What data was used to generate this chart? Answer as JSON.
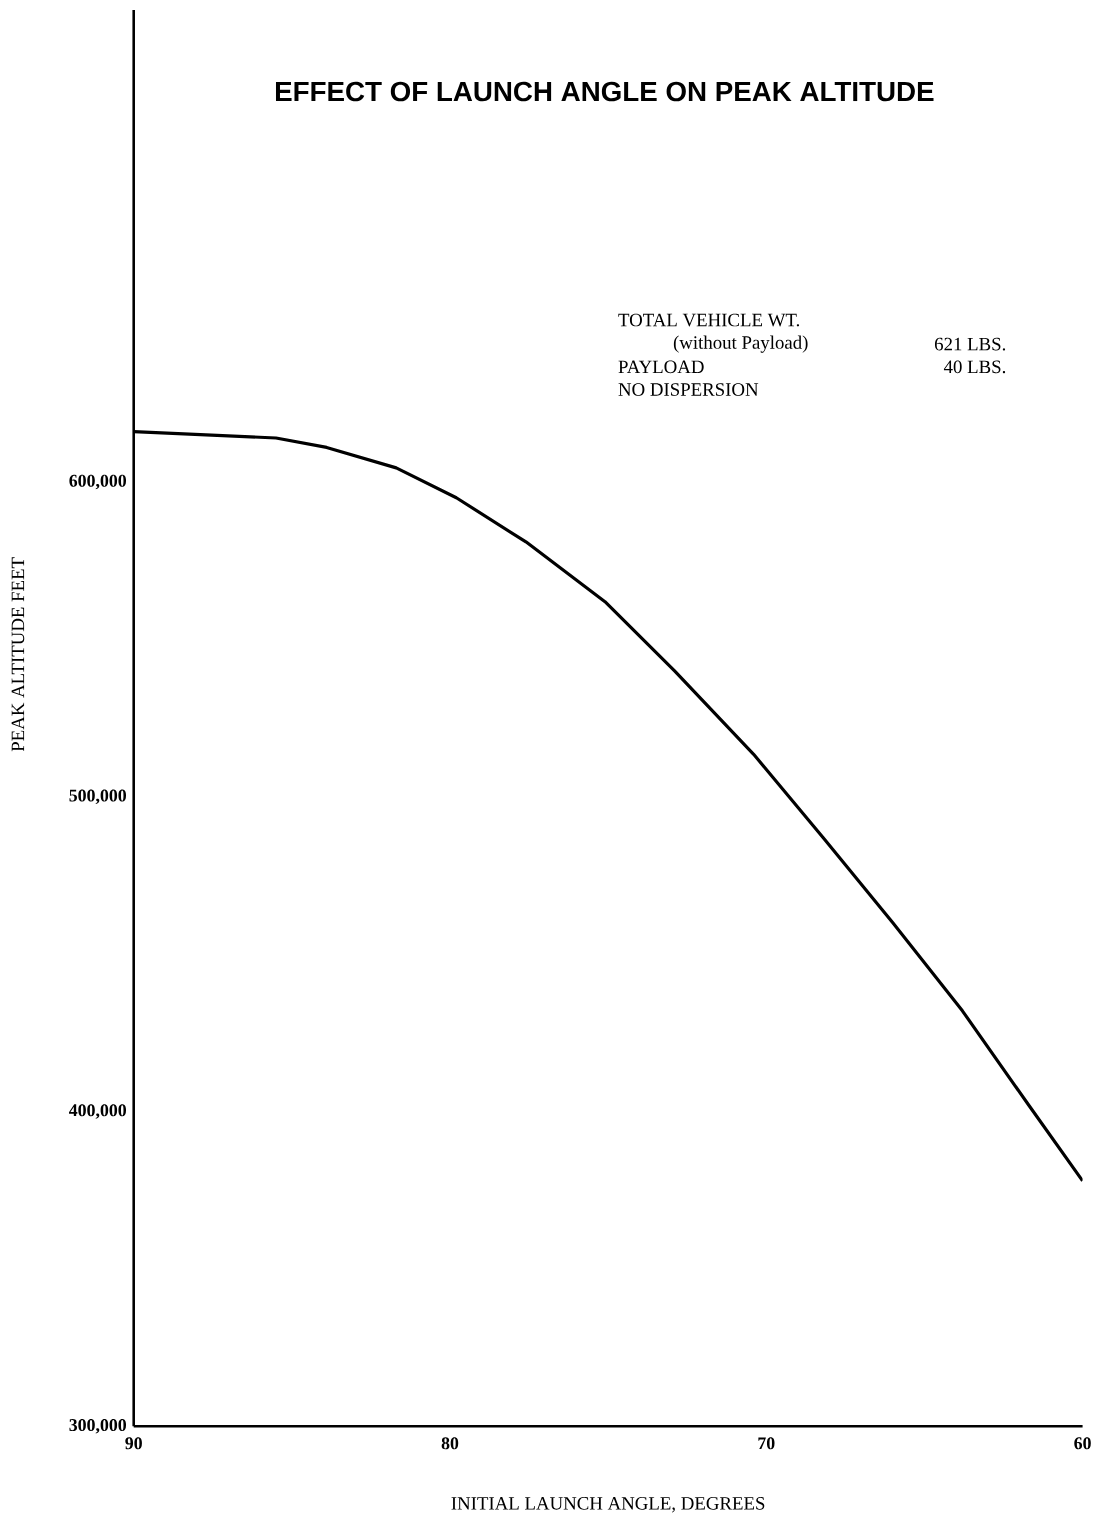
{
  "chart_data": {
    "type": "line",
    "title": "EFFECT OF LAUNCH ANGLE ON PEAK ALTITUDE",
    "xlabel": "INITIAL LAUNCH ANGLE, DEGREES",
    "ylabel": "PEAK ALTITUDE FEET",
    "annotations": [
      "TOTAL VEHICLE WT.",
      "(without Payload)",
      "621 LBS.",
      "PAYLOAD",
      "40 LBS.",
      "NO DISPERSION"
    ],
    "x": [
      90,
      85.5,
      83.9,
      81.7,
      79.8,
      77.6,
      75.1,
      72.9,
      70.4,
      68.2,
      66.0,
      63.8,
      61.7,
      60
    ],
    "series": [
      {
        "color": "#000000",
        "values": [
          616000,
          614000,
          611000,
          604500,
          595000,
          581000,
          562000,
          540000,
          513500,
          487000,
          460000,
          432000,
          402000,
          378000
        ]
      }
    ],
    "xlim": [
      90,
      60
    ],
    "ylim": [
      300000,
      750000
    ],
    "xticks": [
      90,
      80,
      70,
      60
    ],
    "yticks": [
      {
        "value": 300000,
        "label": "300,000"
      },
      {
        "value": 400000,
        "label": "400,000"
      },
      {
        "value": 500000,
        "label": "500,000"
      },
      {
        "value": 600000,
        "label": "600,000"
      }
    ],
    "grid": false,
    "marker": "none",
    "line_style": "solid"
  }
}
